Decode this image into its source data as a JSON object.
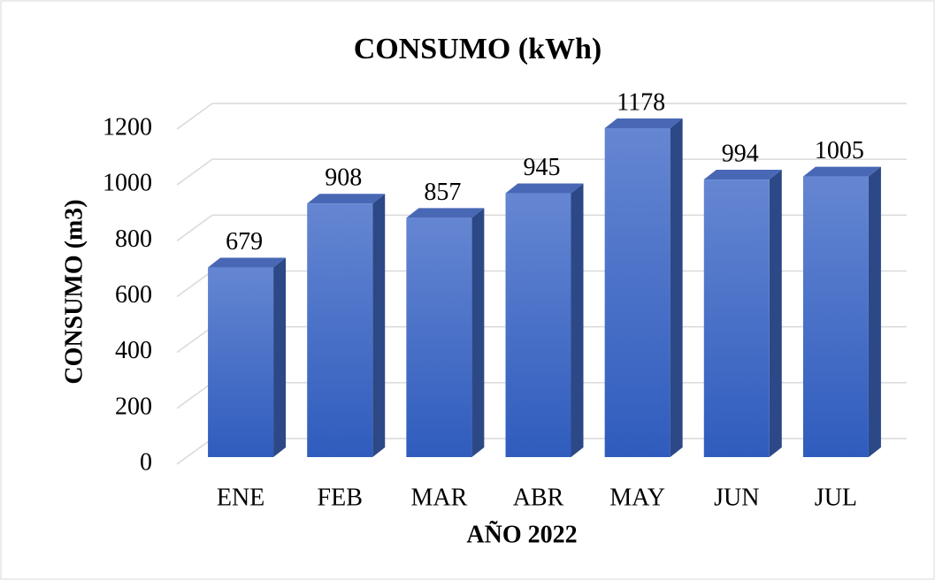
{
  "chart_data": {
    "type": "bar",
    "title": "CONSUMO (kWh)",
    "xlabel": "AÑO 2022",
    "ylabel": "CONSUMO (m3)",
    "categories": [
      "ENE",
      "FEB",
      "MAR",
      "ABR",
      "MAY",
      "JUN",
      "JUL"
    ],
    "values": [
      679,
      908,
      857,
      945,
      1178,
      994,
      1005
    ],
    "color": "#4472c4",
    "ylim": [
      0,
      1200
    ],
    "yticks": [
      0,
      200,
      400,
      600,
      800,
      1000,
      1200
    ],
    "grid": true
  }
}
